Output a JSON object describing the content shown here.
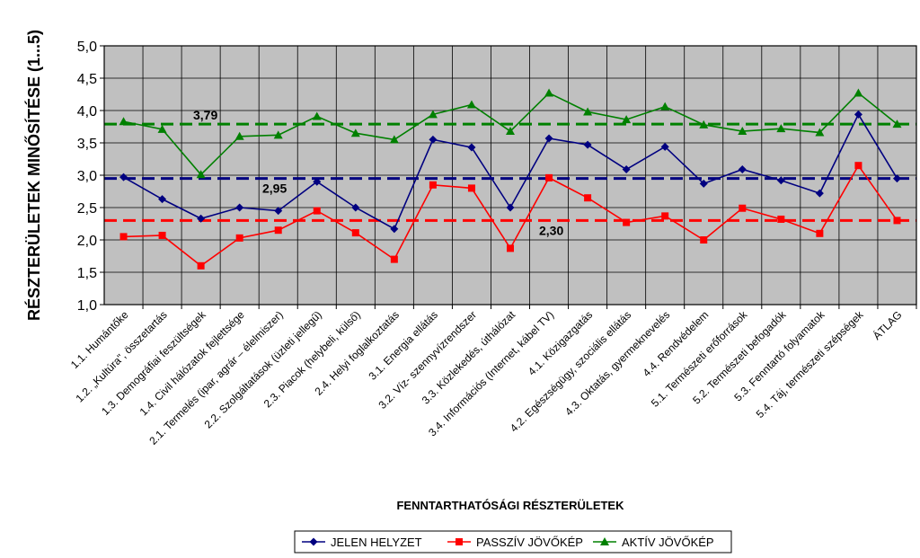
{
  "chart_data": {
    "type": "line",
    "ylabel": "RÉSZTERÜLETEK MINŐSÍTÉSE (1...5)",
    "xlabel": "FENNTARTHATÓSÁGI RÉSZTERÜLETEK",
    "ylim": [
      1.0,
      5.0
    ],
    "yticks": [
      "1,0",
      "1,5",
      "2,0",
      "2,5",
      "3,0",
      "3,5",
      "4,0",
      "4,5",
      "5,0"
    ],
    "yticks_values": [
      1.0,
      1.5,
      2.0,
      2.5,
      3.0,
      3.5,
      4.0,
      4.5,
      5.0
    ],
    "grid": true,
    "legend_position": "bottom-center",
    "categories": [
      "1.1. Humántőke",
      "1.2. „Kultúra\", összetartás",
      "1.3. Demográfiai feszültségek",
      "1.4. Civil hálózatok fejlettsége",
      "2.1. Termelés (ipar, agrár – élelmiszer)",
      "2.2. Szolgáltatások (üzleti jellegű)",
      "2.3. Piacok (helybeli, külső)",
      "2.4. Helyi foglalkoztatás",
      "3.1. Energia ellátás",
      "3.2. Víz- szennyvízrendszer",
      "3.3. Közlekedés, úthálózat",
      "3.4. Információs (Internet, kábel TV)",
      "4.1. Közigazgatás",
      "4.2. Egészségügy, szociális ellátás",
      "4.3. Oktatás, gyermeknevelés",
      "4.4. Rendvédelem",
      "5.1. Természeti erőforrások",
      "5.2. Természeti befogadók",
      "5.3. Fenntartó folyamatok",
      "5.4. Táj, természeti szépségek",
      "ÁTLAG"
    ],
    "series": [
      {
        "name": "JELEN HELYZET",
        "color": "#000080",
        "marker": "diamond",
        "values": [
          2.97,
          2.63,
          2.33,
          2.5,
          2.45,
          2.9,
          2.5,
          2.17,
          3.55,
          3.43,
          2.5,
          3.57,
          3.47,
          3.09,
          3.44,
          2.87,
          3.09,
          2.92,
          2.72,
          3.94,
          2.95
        ]
      },
      {
        "name": "PASSZÍV JÖVŐKÉP",
        "color": "#ff0000",
        "marker": "square",
        "values": [
          2.05,
          2.07,
          1.6,
          2.03,
          2.15,
          2.45,
          2.11,
          1.7,
          2.85,
          2.8,
          1.87,
          2.96,
          2.65,
          2.27,
          2.37,
          2.0,
          2.49,
          2.32,
          2.1,
          3.15,
          2.3
        ]
      },
      {
        "name": "AKTÍV JÖVŐKÉP",
        "color": "#008000",
        "marker": "triangle",
        "values": [
          3.83,
          3.71,
          3.01,
          3.6,
          3.62,
          3.91,
          3.65,
          3.55,
          3.94,
          4.09,
          3.68,
          4.27,
          3.98,
          3.86,
          4.06,
          3.78,
          3.68,
          3.72,
          3.66,
          4.27,
          3.79
        ]
      }
    ],
    "reference_lines": [
      {
        "value": 3.79,
        "label": "3,79",
        "color": "#008000"
      },
      {
        "value": 2.95,
        "label": "2,95",
        "color": "#000080"
      },
      {
        "value": 2.3,
        "label": "2,30",
        "color": "#ff0000"
      }
    ]
  }
}
